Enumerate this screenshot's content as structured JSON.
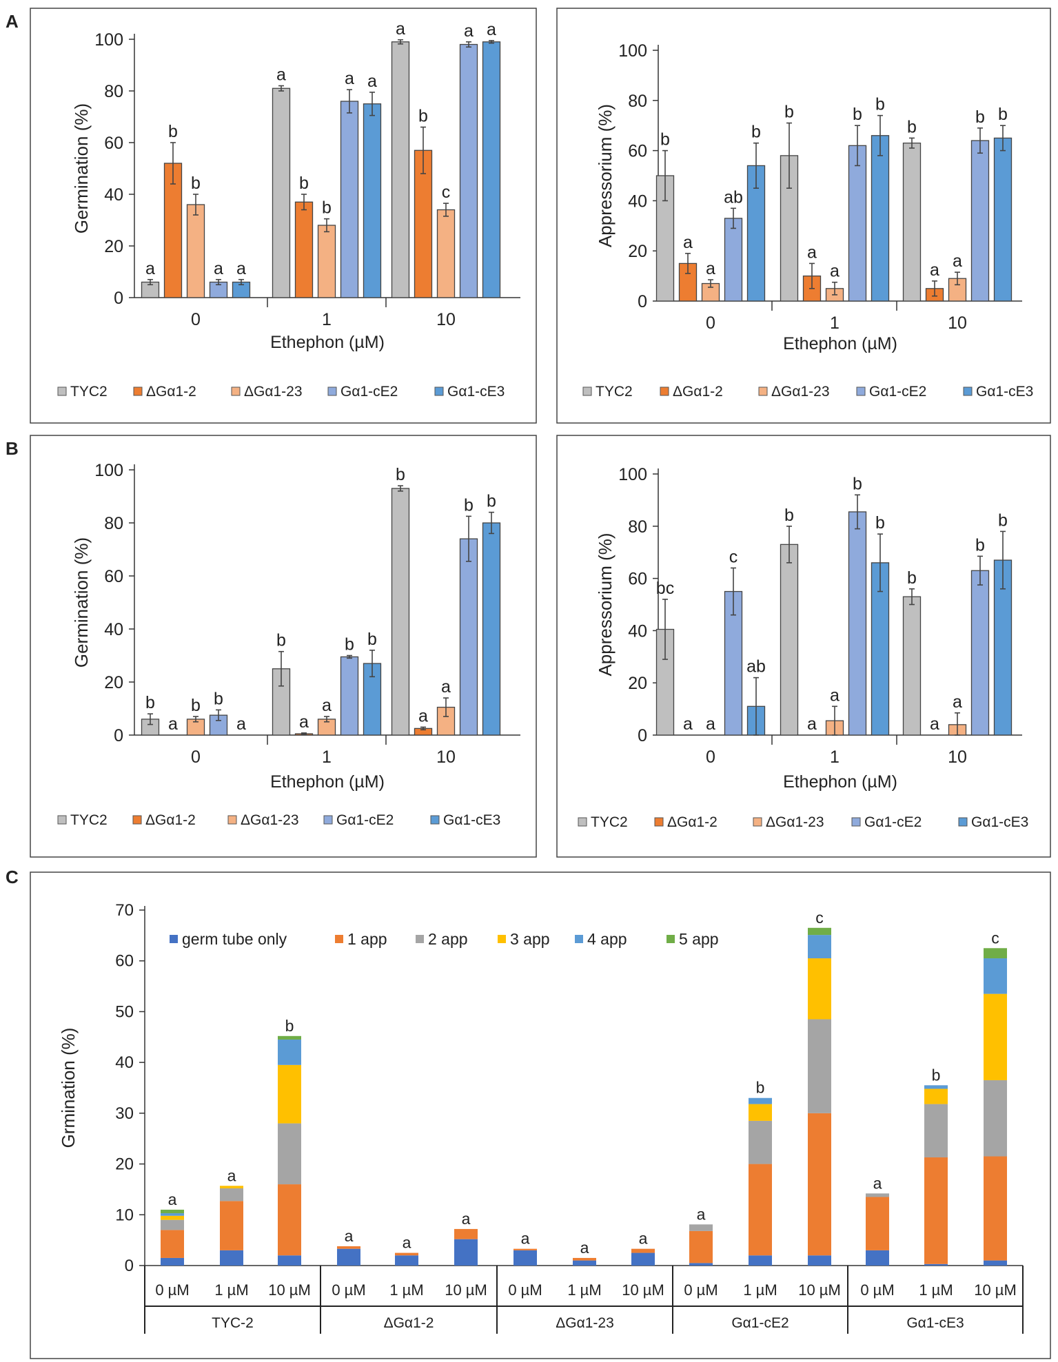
{
  "panel_labels": [
    "A",
    "B",
    "C"
  ],
  "chart_data": [
    {
      "panel": "A",
      "position": "left",
      "type": "bar",
      "xlabel": "Ethephon (µM)",
      "ylabel": "Germination (%)",
      "ylim": [
        0,
        100
      ],
      "yticks": [
        0,
        20,
        40,
        60,
        80,
        100
      ],
      "categories": [
        "0",
        "1",
        "10"
      ],
      "series": [
        {
          "name": "TYC2",
          "color": "#BFBFBF",
          "values": [
            6,
            81,
            99
          ],
          "errors": [
            1,
            1,
            0.8
          ],
          "letters": [
            "a",
            "a",
            "a"
          ]
        },
        {
          "name": "ΔGα1-2",
          "color": "#ED7D31",
          "values": [
            52,
            37,
            57
          ],
          "errors": [
            8,
            3,
            9
          ],
          "letters": [
            "b",
            "b",
            "b"
          ]
        },
        {
          "name": "ΔGα1-23",
          "color": "#F4B183",
          "values": [
            36,
            28,
            34
          ],
          "errors": [
            4,
            2.5,
            2.5
          ],
          "letters": [
            "b",
            "b",
            "c"
          ]
        },
        {
          "name": "Gα1-cE2",
          "color": "#8FAADC",
          "values": [
            6,
            76,
            98
          ],
          "errors": [
            1,
            4.5,
            1
          ],
          "letters": [
            "a",
            "a",
            "a"
          ]
        },
        {
          "name": "Gα1-cE3",
          "color": "#5B9BD5",
          "values": [
            6,
            75,
            99
          ],
          "errors": [
            1,
            4.5,
            0.5
          ],
          "letters": [
            "a",
            "a",
            "a"
          ]
        }
      ],
      "legend": "bottom"
    },
    {
      "panel": "A",
      "position": "right",
      "type": "bar",
      "xlabel": "Ethephon (µM)",
      "ylabel": "Appressorium (%)",
      "ylim": [
        0,
        100
      ],
      "yticks": [
        0,
        20,
        40,
        60,
        80,
        100
      ],
      "categories": [
        "0",
        "1",
        "10"
      ],
      "series": [
        {
          "name": "TYC2",
          "color": "#BFBFBF",
          "values": [
            50,
            58,
            63
          ],
          "errors": [
            10,
            13,
            2
          ],
          "letters": [
            "b",
            "b",
            "b"
          ]
        },
        {
          "name": "ΔGα1-2",
          "color": "#ED7D31",
          "values": [
            15,
            10,
            5
          ],
          "errors": [
            4,
            5,
            3
          ],
          "letters": [
            "a",
            "a",
            "a"
          ]
        },
        {
          "name": "ΔGα1-23",
          "color": "#F4B183",
          "values": [
            7,
            5,
            9
          ],
          "errors": [
            1.5,
            2.5,
            2.5
          ],
          "letters": [
            "a",
            "a",
            "a"
          ]
        },
        {
          "name": "Gα1-cE2",
          "color": "#8FAADC",
          "values": [
            33,
            62,
            64
          ],
          "errors": [
            4,
            8,
            5
          ],
          "letters": [
            "ab",
            "b",
            "b"
          ]
        },
        {
          "name": "Gα1-cE3",
          "color": "#5B9BD5",
          "values": [
            54,
            66,
            65
          ],
          "errors": [
            9,
            8,
            5
          ],
          "letters": [
            "b",
            "b",
            "b"
          ]
        }
      ],
      "legend": "bottom"
    },
    {
      "panel": "B",
      "position": "left",
      "type": "bar",
      "xlabel": "Ethephon (µM)",
      "ylabel": "Germination (%)",
      "ylim": [
        0,
        100
      ],
      "yticks": [
        0,
        20,
        40,
        60,
        80,
        100
      ],
      "categories": [
        "0",
        "1",
        "10"
      ],
      "series": [
        {
          "name": "TYC2",
          "color": "#BFBFBF",
          "values": [
            6,
            25,
            93
          ],
          "errors": [
            2,
            6.5,
            1
          ],
          "letters": [
            "b",
            "b",
            "b"
          ]
        },
        {
          "name": "ΔGα1-2",
          "color": "#ED7D31",
          "values": [
            0,
            0.5,
            2.5
          ],
          "errors": [
            0,
            0.3,
            0.5
          ],
          "letters": [
            "a",
            "a",
            "a"
          ]
        },
        {
          "name": "ΔGα1-23",
          "color": "#F4B183",
          "values": [
            6,
            6,
            10.5
          ],
          "errors": [
            1,
            1,
            3.5
          ],
          "letters": [
            "b",
            "a",
            "a"
          ]
        },
        {
          "name": "Gα1-cE2",
          "color": "#8FAADC",
          "values": [
            7.5,
            29.5,
            74
          ],
          "errors": [
            2,
            0.5,
            8.5
          ],
          "letters": [
            "b",
            "b",
            "b"
          ]
        },
        {
          "name": "Gα1-cE3",
          "color": "#5B9BD5",
          "values": [
            0,
            27,
            80
          ],
          "errors": [
            0,
            5,
            4
          ],
          "letters": [
            "a",
            "b",
            "b"
          ]
        }
      ],
      "legend": "bottom"
    },
    {
      "panel": "B",
      "position": "right",
      "type": "bar",
      "xlabel": "Ethephon (µM)",
      "ylabel": "Appressorium (%)",
      "ylim": [
        0,
        100
      ],
      "yticks": [
        0,
        20,
        40,
        60,
        80,
        100
      ],
      "categories": [
        "0",
        "1",
        "10"
      ],
      "series": [
        {
          "name": "TYC2",
          "color": "#BFBFBF",
          "values": [
            40.5,
            73,
            53
          ],
          "errors": [
            11.5,
            7,
            3
          ],
          "letters": [
            "bc",
            "b",
            "b"
          ]
        },
        {
          "name": "ΔGα1-2",
          "color": "#ED7D31",
          "values": [
            0,
            0,
            0
          ],
          "errors": [
            0,
            0,
            0
          ],
          "letters": [
            "a",
            "a",
            "a"
          ]
        },
        {
          "name": "ΔGα1-23",
          "color": "#F4B183",
          "values": [
            0,
            5.5,
            4
          ],
          "errors": [
            0,
            5.5,
            4.5
          ],
          "letters": [
            "a",
            "a",
            "a"
          ]
        },
        {
          "name": "Gα1-cE2",
          "color": "#8FAADC",
          "values": [
            55,
            85.5,
            63
          ],
          "errors": [
            9,
            6.5,
            5.5
          ],
          "letters": [
            "c",
            "b",
            "b"
          ]
        },
        {
          "name": "Gα1-cE3",
          "color": "#5B9BD5",
          "values": [
            11,
            66,
            67
          ],
          "errors": [
            11,
            11,
            11
          ],
          "letters": [
            "ab",
            "b",
            "b"
          ]
        }
      ],
      "legend": "bottom"
    },
    {
      "panel": "C",
      "type": "stacked-bar",
      "ylabel": "Grmination (%)",
      "ylim": [
        0,
        70
      ],
      "yticks": [
        0,
        10,
        20,
        30,
        40,
        50,
        60,
        70
      ],
      "groups": [
        "TYC-2",
        "ΔGα1-2",
        "ΔGα1-23",
        "Gα1-cE2",
        "Gα1-cE3"
      ],
      "subcategories": [
        "0 µM",
        "1 µM",
        "10 µM"
      ],
      "series": [
        {
          "name": "germ tube only",
          "color": "#4472C4",
          "values": [
            1.5,
            3,
            2,
            3.3,
            2,
            5.2,
            3,
            1,
            2.5,
            0.5,
            2,
            2,
            3,
            0.3,
            1
          ]
        },
        {
          "name": "1 app",
          "color": "#ED7D31",
          "values": [
            5.5,
            9.7,
            14,
            0.5,
            0.5,
            2,
            0.3,
            0.5,
            0.8,
            6.3,
            18,
            28,
            10.5,
            21,
            20.5
          ]
        },
        {
          "name": "2 app",
          "color": "#A5A5A5",
          "values": [
            2,
            2.5,
            12,
            0,
            0,
            0,
            0,
            0,
            0,
            1.3,
            8.5,
            18.5,
            0.7,
            10.5,
            15
          ]
        },
        {
          "name": "3 app",
          "color": "#FFC000",
          "values": [
            0.8,
            0.5,
            11.5,
            0,
            0,
            0,
            0,
            0,
            0,
            0,
            3.3,
            12,
            0,
            3,
            17
          ]
        },
        {
          "name": "4 app",
          "color": "#5B9BD5",
          "values": [
            0.5,
            0,
            5,
            0,
            0,
            0,
            0,
            0,
            0,
            0,
            1.2,
            4.6,
            0,
            0.7,
            7
          ]
        },
        {
          "name": "5 app",
          "color": "#70AD47",
          "values": [
            0.7,
            0,
            0.7,
            0,
            0,
            0,
            0,
            0,
            0,
            0,
            0,
            1.4,
            0,
            0,
            2
          ]
        }
      ],
      "letters": [
        "a",
        "a",
        "b",
        "a",
        "a",
        "a",
        "a",
        "a",
        "a",
        "a",
        "b",
        "c",
        "a",
        "b",
        "c"
      ],
      "legend": "top-left"
    }
  ]
}
